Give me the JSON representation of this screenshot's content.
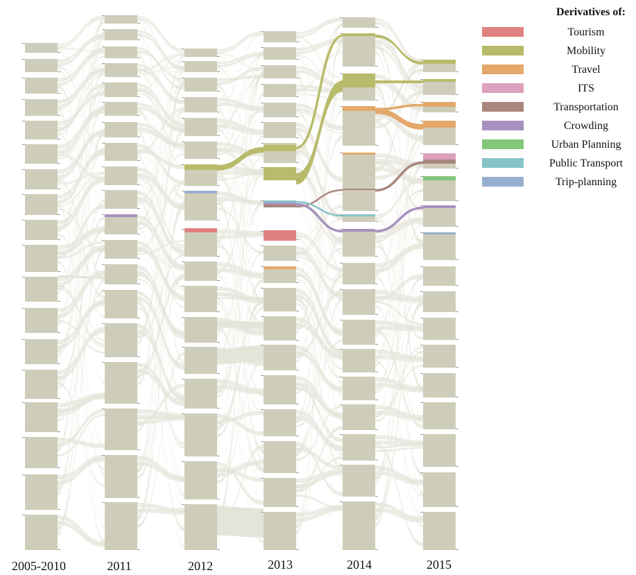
{
  "columns": [
    {
      "label": "2005-2010",
      "blocks": [
        [
          62,
          76
        ],
        [
          85,
          104
        ],
        [
          112,
          135
        ],
        [
          143,
          167
        ],
        [
          174,
          201
        ],
        [
          208,
          236
        ],
        [
          244,
          273
        ],
        [
          280,
          310
        ],
        [
          317,
          346
        ],
        [
          353,
          392
        ],
        [
          399,
          435
        ],
        [
          444,
          480
        ],
        [
          489,
          525
        ],
        [
          533,
          575
        ],
        [
          580,
          623
        ],
        [
          630,
          675
        ],
        [
          684,
          735
        ],
        [
          742,
          793
        ]
      ]
    },
    {
      "label": "2011",
      "blocks": [
        [
          22,
          34
        ],
        [
          42,
          58
        ],
        [
          67,
          84
        ],
        [
          91,
          111
        ],
        [
          119,
          140
        ],
        [
          147,
          167
        ],
        [
          176,
          198
        ],
        [
          206,
          232
        ],
        [
          240,
          267
        ],
        [
          274,
          301
        ],
        [
          309,
          338
        ],
        [
          346,
          373
        ],
        [
          381,
          410
        ],
        [
          418,
          459
        ],
        [
          466,
          515
        ],
        [
          522,
          582
        ],
        [
          589,
          649
        ],
        [
          656,
          718
        ],
        [
          724,
          793
        ]
      ]
    },
    {
      "label": "2012",
      "blocks": [
        [
          70,
          82
        ],
        [
          88,
          104
        ],
        [
          112,
          132
        ],
        [
          140,
          162
        ],
        [
          170,
          196
        ],
        [
          204,
          229
        ],
        [
          237,
          268
        ],
        [
          275,
          318
        ],
        [
          330,
          370
        ],
        [
          377,
          405
        ],
        [
          412,
          450
        ],
        [
          457,
          494
        ],
        [
          500,
          539
        ],
        [
          546,
          589
        ],
        [
          596,
          658
        ],
        [
          665,
          720
        ],
        [
          727,
          793
        ]
      ]
    },
    {
      "label": "2013",
      "blocks": [
        [
          45,
          61
        ],
        [
          68,
          86
        ],
        [
          94,
          113
        ],
        [
          121,
          140
        ],
        [
          148,
          169
        ],
        [
          176,
          199
        ],
        [
          206,
          235
        ],
        [
          241,
          260
        ],
        [
          289,
          299
        ],
        [
          333,
          346
        ],
        [
          354,
          376
        ],
        [
          384,
          408
        ],
        [
          415,
          449
        ],
        [
          456,
          491
        ],
        [
          497,
          534
        ],
        [
          541,
          583
        ],
        [
          590,
          629
        ],
        [
          636,
          682
        ],
        [
          689,
          731
        ],
        [
          738,
          793
        ]
      ]
    },
    {
      "label": "2014",
      "blocks": [
        [
          25,
          40
        ],
        [
          48,
          96
        ],
        [
          106,
          145
        ],
        [
          153,
          210
        ],
        [
          220,
          304
        ],
        [
          309,
          320
        ],
        [
          330,
          370
        ],
        [
          379,
          410
        ],
        [
          417,
          454
        ],
        [
          461,
          497
        ],
        [
          503,
          537
        ],
        [
          543,
          577
        ],
        [
          583,
          620
        ],
        [
          626,
          664
        ],
        [
          670,
          716
        ],
        [
          723,
          793
        ]
      ]
    },
    {
      "label": "2015",
      "blocks": [
        [
          86,
          104
        ],
        [
          114,
          137
        ],
        [
          147,
          162
        ],
        [
          174,
          209
        ],
        [
          221,
          243
        ],
        [
          254,
          290
        ],
        [
          296,
          327
        ],
        [
          335,
          375
        ],
        [
          384,
          412
        ],
        [
          420,
          450
        ],
        [
          458,
          490
        ],
        [
          497,
          530
        ],
        [
          538,
          573
        ],
        [
          580,
          619
        ],
        [
          626,
          673
        ],
        [
          681,
          731
        ],
        [
          738,
          793
        ]
      ]
    }
  ],
  "highlights": [
    {
      "name": "Tourism",
      "col": 2,
      "y": 329,
      "h": 6
    },
    {
      "name": "Tourism",
      "col": 3,
      "y": 332,
      "h": 15
    },
    {
      "name": "Mobility",
      "col": 2,
      "y": 237,
      "h": 8
    },
    {
      "name": "Mobility",
      "col": 3,
      "y": 209,
      "h": 9
    },
    {
      "name": "Mobility",
      "col": 3,
      "y": 241,
      "h": 19
    },
    {
      "name": "Mobility",
      "col": 4,
      "y": 48,
      "h": 4
    },
    {
      "name": "Mobility",
      "col": 4,
      "y": 106,
      "h": 20
    },
    {
      "name": "Mobility",
      "col": 5,
      "y": 86,
      "h": 6
    },
    {
      "name": "Mobility",
      "col": 5,
      "y": 114,
      "h": 4
    },
    {
      "name": "Travel",
      "col": 3,
      "y": 384,
      "h": 4
    },
    {
      "name": "Travel",
      "col": 4,
      "y": 153,
      "h": 7
    },
    {
      "name": "Travel",
      "col": 4,
      "y": 220,
      "h": 3
    },
    {
      "name": "Travel",
      "col": 5,
      "y": 147,
      "h": 7
    },
    {
      "name": "Travel",
      "col": 5,
      "y": 174,
      "h": 10
    },
    {
      "name": "ITS",
      "col": 5,
      "y": 221,
      "h": 9
    },
    {
      "name": "Transportation",
      "col": 3,
      "y": 295,
      "h": 4
    },
    {
      "name": "Transportation",
      "col": 4,
      "y": 272,
      "h": 2
    },
    {
      "name": "Transportation",
      "col": 5,
      "y": 230,
      "h": 6
    },
    {
      "name": "Crowding",
      "col": 1,
      "y": 309,
      "h": 4
    },
    {
      "name": "Crowding",
      "col": 3,
      "y": 292,
      "h": 3
    },
    {
      "name": "Crowding",
      "col": 4,
      "y": 330,
      "h": 4
    },
    {
      "name": "Crowding",
      "col": 5,
      "y": 296,
      "h": 4
    },
    {
      "name": "Urban Planning",
      "col": 5,
      "y": 254,
      "h": 6
    },
    {
      "name": "Public Transport",
      "col": 3,
      "y": 289,
      "h": 3
    },
    {
      "name": "Public Transport",
      "col": 4,
      "y": 309,
      "h": 3
    },
    {
      "name": "Trip-planning",
      "col": 2,
      "y": 275,
      "h": 4
    },
    {
      "name": "Trip-planning",
      "col": 5,
      "y": 335,
      "h": 3
    }
  ],
  "links": [
    {
      "name": "Mobility",
      "from": [
        2,
        238
      ],
      "to": [
        3,
        212
      ],
      "w": 8
    },
    {
      "name": "Mobility",
      "from": [
        3,
        212
      ],
      "to": [
        4,
        50
      ],
      "w": 3
    },
    {
      "name": "Mobility",
      "from": [
        3,
        250
      ],
      "to": [
        4,
        116
      ],
      "w": 16
    },
    {
      "name": "Mobility",
      "from": [
        4,
        50
      ],
      "to": [
        5,
        89
      ],
      "w": 4
    },
    {
      "name": "Mobility",
      "from": [
        4,
        116
      ],
      "to": [
        5,
        116
      ],
      "w": 4
    },
    {
      "name": "Travel",
      "from": [
        4,
        156
      ],
      "to": [
        5,
        179
      ],
      "w": 8
    },
    {
      "name": "Travel",
      "from": [
        4,
        156
      ],
      "to": [
        5,
        150
      ],
      "w": 3
    },
    {
      "name": "Transportation",
      "from": [
        3,
        297
      ],
      "to": [
        4,
        273
      ],
      "w": 2
    },
    {
      "name": "Transportation",
      "from": [
        4,
        273
      ],
      "to": [
        5,
        233
      ],
      "w": 3
    },
    {
      "name": "Crowding",
      "from": [
        3,
        293
      ],
      "to": [
        4,
        332
      ],
      "w": 3
    },
    {
      "name": "Crowding",
      "from": [
        4,
        332
      ],
      "to": [
        5,
        298
      ],
      "w": 3
    },
    {
      "name": "Public Transport",
      "from": [
        3,
        290
      ],
      "to": [
        4,
        310
      ],
      "w": 2
    }
  ],
  "legend": {
    "title": "Derivatives of:",
    "items": [
      {
        "name": "Tourism",
        "color": "#e08080"
      },
      {
        "name": "Mobility",
        "color": "#b8bb6a"
      },
      {
        "name": "Travel",
        "color": "#e3a86a"
      },
      {
        "name": "ITS",
        "color": "#dba1bd"
      },
      {
        "name": "Transportation",
        "color": "#a8867c"
      },
      {
        "name": "Crowding",
        "color": "#a891c0"
      },
      {
        "name": "Urban Planning",
        "color": "#84c67a"
      },
      {
        "name": "Public Transport",
        "color": "#86c3c7"
      },
      {
        "name": "Trip-planning",
        "color": "#98aece"
      }
    ]
  },
  "colors": {
    "block": "#cdcdba",
    "flow": "#e4e4d9",
    "tick": "#9a9a9a"
  }
}
